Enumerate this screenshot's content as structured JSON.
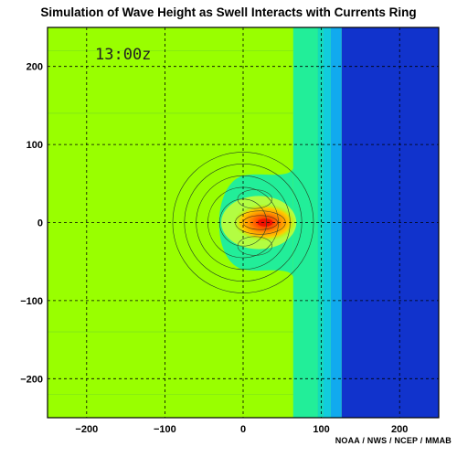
{
  "chart_data": {
    "type": "heatmap",
    "title": "Simulation of Wave Height as Swell Interacts with Currents Ring",
    "time_label": "13:00z",
    "credit": "NOAA / NWS / NCEP / MMAB",
    "xlim": [
      -250,
      250
    ],
    "ylim": [
      -250,
      250
    ],
    "x_ticks": [
      -200,
      -100,
      0,
      100,
      200
    ],
    "y_ticks": [
      -200,
      -100,
      0,
      100,
      200
    ],
    "grid": "dashed",
    "background_color": "#99ff00",
    "bands": [
      {
        "x0": 64,
        "x1": 95,
        "color": "#22ee99"
      },
      {
        "x0": 95,
        "x1": 102,
        "color": "#11ddbb"
      },
      {
        "x0": 102,
        "x1": 112,
        "color": "#11ccdd"
      },
      {
        "x0": 112,
        "x1": 126,
        "color": "#11aaee"
      },
      {
        "x0": 126,
        "x1": 250,
        "color": "#1133cc"
      }
    ],
    "peak": {
      "x": 28,
      "y": 0,
      "color": "#ee1100"
    },
    "current_ring_circles": [
      {
        "cx": 0,
        "cy": 0,
        "r": 30
      },
      {
        "cx": 0,
        "cy": 0,
        "r": 45
      },
      {
        "cx": 0,
        "cy": 0,
        "r": 60
      },
      {
        "cx": 0,
        "cy": 0,
        "r": 75
      },
      {
        "cx": 0,
        "cy": 0,
        "r": 90
      }
    ]
  }
}
